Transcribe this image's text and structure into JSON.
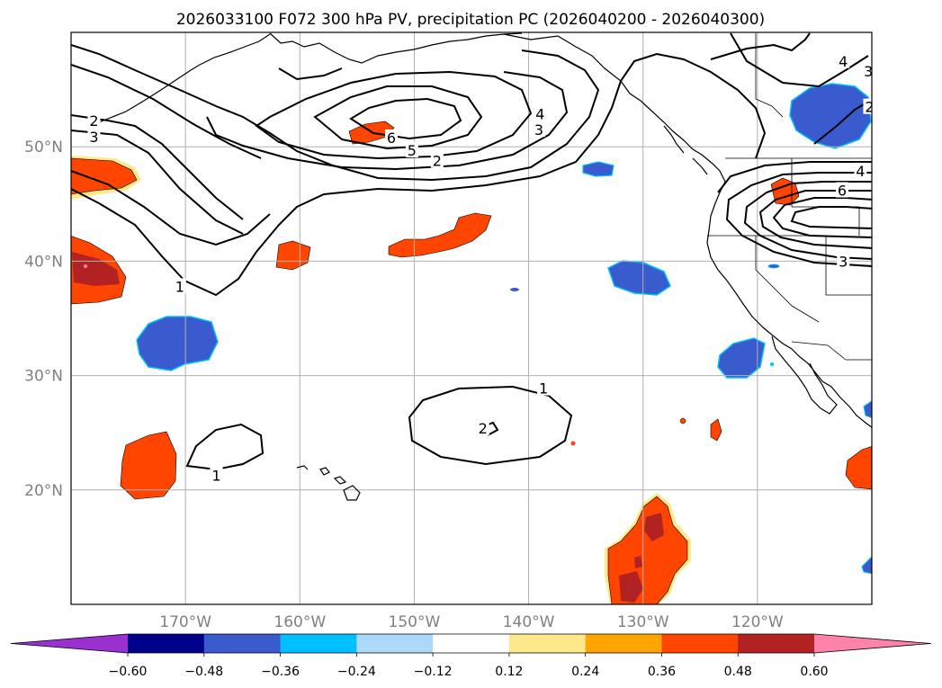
{
  "title": "2026033100 F072 300 hPa PV, precipitation PC (2026040200 - 2026040300)",
  "map": {
    "lon_range": [
      -180,
      -110
    ],
    "lat_range": [
      10,
      60
    ],
    "lon_ticks": [
      {
        "value": -170,
        "label": "170°W"
      },
      {
        "value": -160,
        "label": "160°W"
      },
      {
        "value": -150,
        "label": "150°W"
      },
      {
        "value": -140,
        "label": "140°W"
      },
      {
        "value": -130,
        "label": "130°W"
      },
      {
        "value": -120,
        "label": "120°W"
      }
    ],
    "lat_ticks": [
      {
        "value": 50,
        "label": "50°N"
      },
      {
        "value": 40,
        "label": "40°N"
      },
      {
        "value": 30,
        "label": "30°N"
      },
      {
        "value": 20,
        "label": "20°N"
      }
    ],
    "grid": true,
    "pv_contour_labels": [
      {
        "lon": -178.0,
        "lat": 52.3,
        "text": "2"
      },
      {
        "lon": -178.0,
        "lat": 50.9,
        "text": "3"
      },
      {
        "lon": -170.5,
        "lat": 37.8,
        "text": "1"
      },
      {
        "lon": -148.0,
        "lat": 48.8,
        "text": "2"
      },
      {
        "lon": -150.2,
        "lat": 49.7,
        "text": "5"
      },
      {
        "lon": -152.0,
        "lat": 50.8,
        "text": "6"
      },
      {
        "lon": -139.1,
        "lat": 51.5,
        "text": "3"
      },
      {
        "lon": -139.0,
        "lat": 52.9,
        "text": "4"
      },
      {
        "lon": -112.5,
        "lat": 57.5,
        "text": "4"
      },
      {
        "lon": -110.3,
        "lat": 56.6,
        "text": "3"
      },
      {
        "lon": -110.2,
        "lat": 53.5,
        "text": "2"
      },
      {
        "lon": -111.0,
        "lat": 47.9,
        "text": "4"
      },
      {
        "lon": -112.6,
        "lat": 46.2,
        "text": "6"
      },
      {
        "lon": -112.5,
        "lat": 40.0,
        "text": "3"
      },
      {
        "lon": -138.7,
        "lat": 28.9,
        "text": "1"
      },
      {
        "lon": -144.0,
        "lat": 25.4,
        "text": "2"
      },
      {
        "lon": -167.3,
        "lat": 21.3,
        "text": "1"
      }
    ]
  },
  "colorbar": {
    "tick_labels": [
      "−0.60",
      "−0.48",
      "−0.36",
      "−0.24",
      "−0.12",
      "0.12",
      "0.24",
      "0.36",
      "0.48",
      "0.60"
    ],
    "colors": [
      "#9b30d0",
      "#00008b",
      "#3a5bcd",
      "#00bfff",
      "#add8f8",
      "#ffffff",
      "#fde88a",
      "#ffa500",
      "#ff4500",
      "#b22222",
      "#ff82ab"
    ],
    "extend": "both"
  }
}
